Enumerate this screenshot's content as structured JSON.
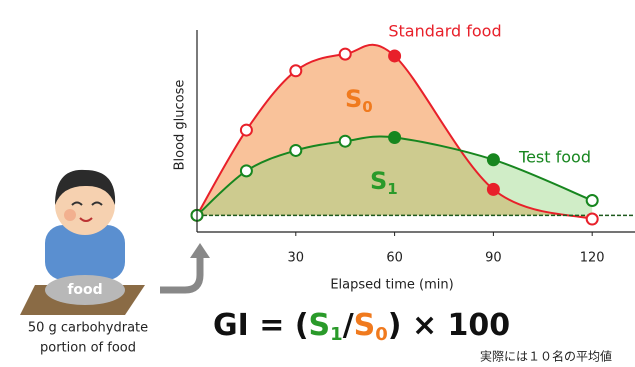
{
  "chart_data": {
    "type": "line",
    "xlabel": "Elapsed time (min)",
    "ylabel": "Blood glucose",
    "xlim": [
      0,
      133
    ],
    "ylim": [
      -9,
      100
    ],
    "xticks": [
      30,
      60,
      90,
      120
    ],
    "series": [
      {
        "name": "Standard food",
        "color": "#e8202a",
        "fill": "#f9c29a",
        "area_label": "S",
        "area_sub": "0",
        "area_label_color": "#f07a1e",
        "x": [
          0,
          15,
          30,
          45,
          60,
          90,
          120
        ],
        "values": [
          0,
          46,
          78,
          87,
          86,
          14,
          -2
        ],
        "filled": [
          false,
          false,
          false,
          false,
          true,
          true,
          false
        ]
      },
      {
        "name": "Test food",
        "color": "#17861f",
        "fill": "rgba(150,215,130,0.45)",
        "area_label": "S",
        "area_sub": "1",
        "area_label_color": "#2a9a2a",
        "x": [
          0,
          15,
          30,
          45,
          60,
          90,
          120
        ],
        "values": [
          0,
          24,
          35,
          40,
          42,
          30,
          8
        ],
        "filled": [
          false,
          false,
          false,
          false,
          true,
          true,
          false
        ]
      }
    ]
  },
  "illustration": {
    "plate_label": "food",
    "caption": [
      "50 g carbohydrate",
      "portion of food"
    ]
  },
  "formula": [
    {
      "text": "GI",
      "color": "#111",
      "sub": false
    },
    {
      "text": " = (",
      "color": "#111",
      "sub": false
    },
    {
      "text": "S",
      "color": "#2a9a2a",
      "sub": false
    },
    {
      "text": "1",
      "color": "#2a9a2a",
      "sub": true
    },
    {
      "text": "/",
      "color": "#111",
      "sub": false
    },
    {
      "text": "S",
      "color": "#f07a1e",
      "sub": false
    },
    {
      "text": "0",
      "color": "#f07a1e",
      "sub": true
    },
    {
      "text": ") × 100",
      "color": "#111",
      "sub": false
    }
  ],
  "footnote": "実際には１０名の平均値"
}
